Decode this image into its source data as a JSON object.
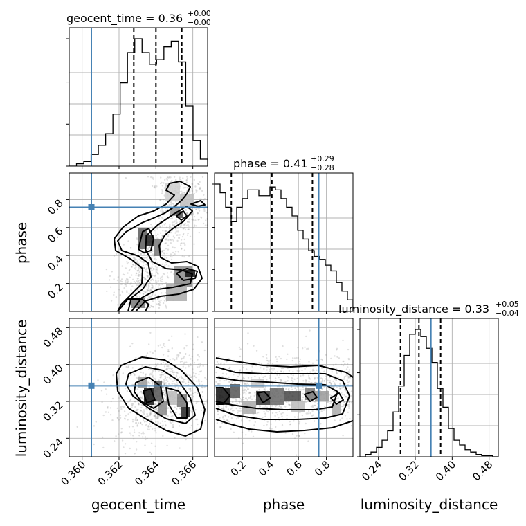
{
  "chart_data": {
    "type": "corner",
    "parameters": [
      {
        "name": "geocent_time",
        "axis_label": "geocent_time",
        "title_prefix": "geocent_time = ",
        "median": "0.36",
        "plus": "+0.00",
        "minus": "−0.00",
        "range": [
          0.3593,
          0.3668
        ],
        "ticks": [
          0.36,
          0.362,
          0.364,
          0.366
        ],
        "tick_labels": [
          "0.360",
          "0.362",
          "0.364",
          "0.366"
        ],
        "truth": 0.3605,
        "quantiles": [
          0.3628,
          0.364,
          0.3654
        ],
        "hist_counts": [
          0,
          2,
          4,
          10,
          18,
          28,
          45,
          72,
          98,
          110,
          98,
          88,
          92,
          103,
          108,
          90,
          52,
          22,
          6
        ]
      },
      {
        "name": "phase",
        "axis_label": "phase",
        "title_prefix": "phase = ",
        "median": "0.41",
        "plus": "+0.29",
        "minus": "−0.28",
        "range": [
          0.0,
          0.99
        ],
        "ticks": [
          0.2,
          0.4,
          0.6,
          0.8
        ],
        "tick_labels": [
          "0.2",
          "0.4",
          "0.6",
          "0.8"
        ],
        "truth": 0.745,
        "quantiles": [
          0.12,
          0.41,
          0.7
        ],
        "hist_counts": [
          88,
          82,
          72,
          62,
          72,
          78,
          84,
          84,
          80,
          80,
          86,
          84,
          78,
          72,
          66,
          56,
          50,
          42,
          38,
          36,
          32,
          28,
          20,
          14,
          8
        ]
      },
      {
        "name": "luminosity_distance",
        "axis_label": "luminosity_distance",
        "title_prefix": "luminosity_distance = ",
        "median": "0.33",
        "plus": "+0.05",
        "minus": "−0.04",
        "range": [
          0.2,
          0.5
        ],
        "ticks": [
          0.24,
          0.32,
          0.4,
          0.48
        ],
        "tick_labels": [
          "0.24",
          "0.32",
          "0.40",
          "0.48"
        ],
        "truth": 0.354,
        "quantiles": [
          0.288,
          0.328,
          0.375
        ],
        "hist_counts": [
          0,
          2,
          4,
          8,
          14,
          22,
          38,
          60,
          86,
          104,
          108,
          102,
          92,
          80,
          58,
          42,
          24,
          14,
          10,
          6,
          4,
          2,
          1,
          1,
          0
        ]
      }
    ],
    "grid": true,
    "truth_color": "#4682b4"
  }
}
